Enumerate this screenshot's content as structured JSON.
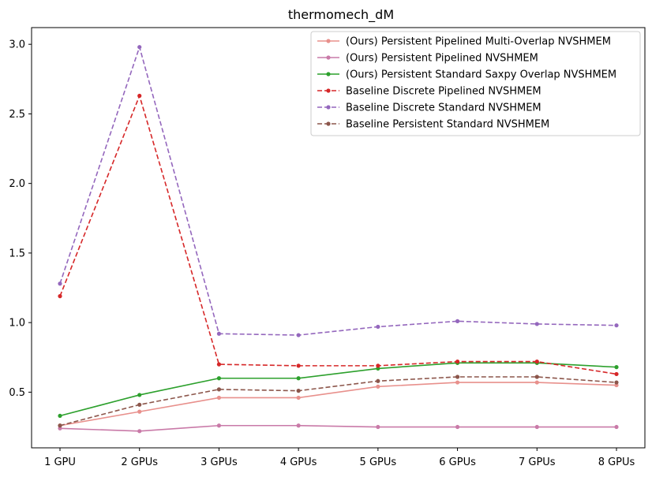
{
  "chart_data": {
    "type": "line",
    "title": "thermomech_dM",
    "xlabel": "",
    "ylabel": "",
    "categories": [
      "1 GPU",
      "2 GPUs",
      "3 GPUs",
      "4 GPUs",
      "5 GPUs",
      "6 GPUs",
      "7 GPUs",
      "8 GPUs"
    ],
    "ylim": [
      0.1,
      3.12
    ],
    "yticks": [
      0.5,
      1.0,
      1.5,
      2.0,
      2.5,
      3.0
    ],
    "ytick_labels": [
      "0.5",
      "1.0",
      "1.5",
      "2.0",
      "2.5",
      "3.0"
    ],
    "grid": false,
    "legend_position": "upper right",
    "series": [
      {
        "name": "(Ours) Persistent Pipelined Multi-Overlap NVSHMEM",
        "color": "#e8908c",
        "dashed": false,
        "values": [
          0.26,
          0.36,
          0.46,
          0.46,
          0.54,
          0.57,
          0.57,
          0.55
        ]
      },
      {
        "name": "(Ours) Persistent Pipelined NVSHMEM",
        "color": "#c97aa8",
        "dashed": false,
        "values": [
          0.24,
          0.22,
          0.26,
          0.26,
          0.25,
          0.25,
          0.25,
          0.25
        ]
      },
      {
        "name": "(Ours) Persistent Standard Saxpy Overlap NVSHMEM",
        "color": "#2ca02c",
        "dashed": false,
        "values": [
          0.33,
          0.48,
          0.6,
          0.6,
          0.67,
          0.71,
          0.71,
          0.68
        ]
      },
      {
        "name": "Baseline Discrete Pipelined NVSHMEM",
        "color": "#d62728",
        "dashed": true,
        "values": [
          1.19,
          2.63,
          0.7,
          0.69,
          0.69,
          0.72,
          0.72,
          0.63
        ]
      },
      {
        "name": "Baseline Discrete Standard NVSHMEM",
        "color": "#9467bd",
        "dashed": true,
        "values": [
          1.28,
          2.98,
          0.92,
          0.91,
          0.97,
          1.01,
          0.99,
          0.98
        ]
      },
      {
        "name": "Baseline Persistent Standard NVSHMEM",
        "color": "#8c564b",
        "dashed": true,
        "values": [
          0.26,
          0.41,
          0.52,
          0.51,
          0.58,
          0.61,
          0.61,
          0.57
        ]
      }
    ]
  }
}
